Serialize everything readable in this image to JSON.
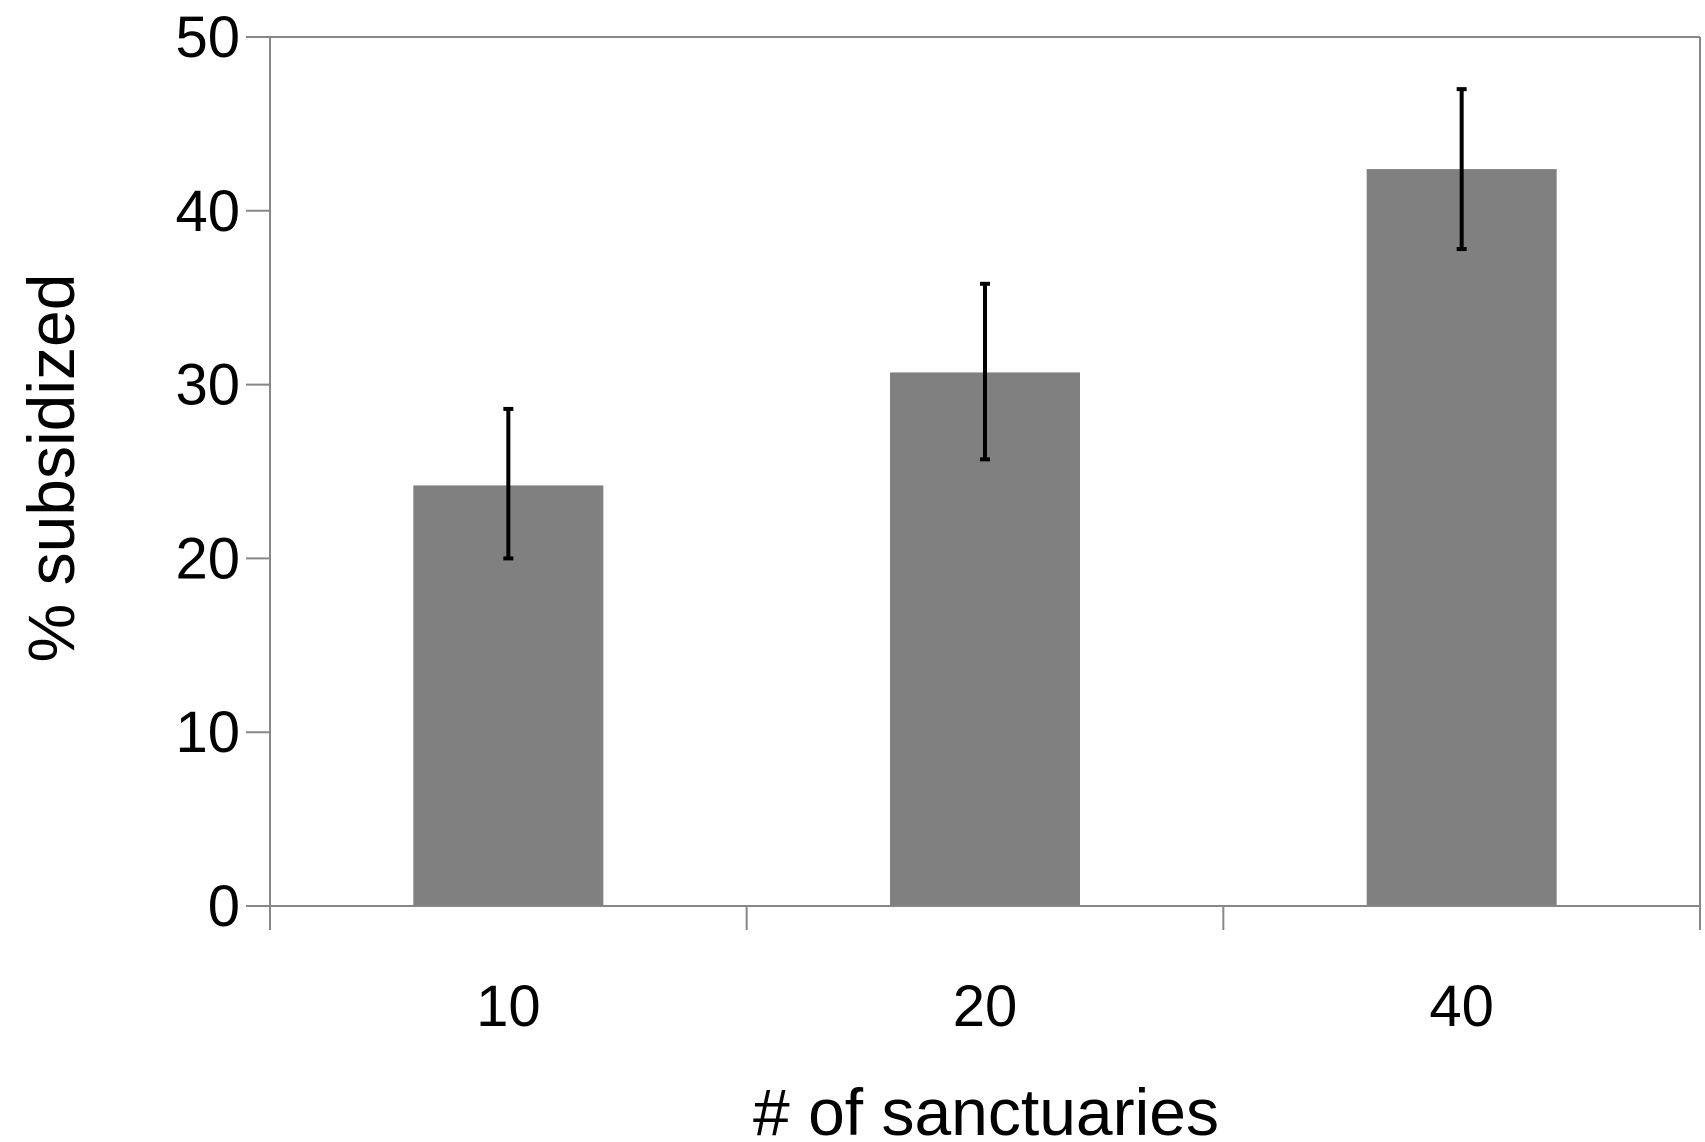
{
  "chart_data": {
    "type": "bar",
    "title": "",
    "xlabel": "# of sanctuaries",
    "ylabel": "% subsidized",
    "categories": [
      "10",
      "20",
      "40"
    ],
    "series": [
      {
        "values": [
          24.2,
          30.7,
          42.4
        ],
        "error_low": [
          20.0,
          25.7,
          37.8
        ],
        "error_high": [
          28.6,
          35.8,
          47.0
        ]
      }
    ],
    "ylim": [
      0,
      50
    ],
    "yticks": [
      "0",
      "10",
      "20",
      "30",
      "40",
      "50"
    ],
    "grid": false,
    "legend": "none",
    "colors": {
      "bar": "#808080",
      "error_bar": "#000000",
      "frame": "#878787"
    }
  }
}
